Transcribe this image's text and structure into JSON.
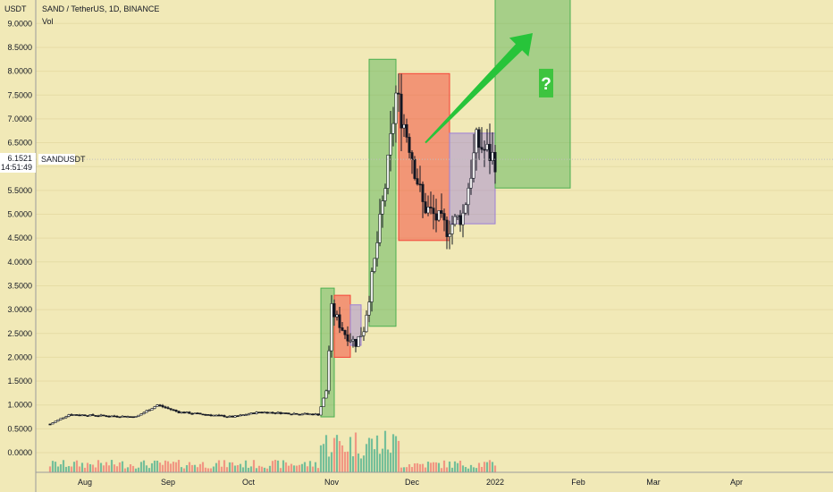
{
  "header": {
    "currency": "USDT",
    "title": "SAND / TetherUS, 1D, BINANCE",
    "volume_label": "Vol"
  },
  "price_badge": {
    "symbol": "SANDUSDT",
    "price": "6.1521",
    "countdown": "14:51:49"
  },
  "annotation": {
    "question_mark": "?"
  },
  "colors": {
    "background": "#f1e9b7",
    "up_candle": "#ffffff",
    "down_candle": "#131722",
    "green_box": "#4caf50",
    "red_box": "#f44336",
    "purple_box": "#9c7ed6",
    "arrow": "#27c43a",
    "volume_up": "#4bb08f",
    "volume_down": "#f07b72"
  },
  "chart_data": {
    "type": "candlestick",
    "title": "SAND / TetherUS, 1D, BINANCE",
    "y_axis_ticks": [
      "9.0000",
      "8.5000",
      "8.0000",
      "7.5000",
      "7.0000",
      "6.5000",
      "6.0000",
      "5.5000",
      "5.0000",
      "4.5000",
      "4.0000",
      "3.5000",
      "3.0000",
      "2.5000",
      "2.0000",
      "1.5000",
      "1.0000",
      "0.5000",
      "0.0000"
    ],
    "x_axis_ticks": [
      "Aug",
      "Sep",
      "Oct",
      "Nov",
      "Dec",
      "2022",
      "Feb",
      "Mar",
      "Apr"
    ],
    "ylim": [
      -0.4,
      9.6
    ],
    "last_price": 6.1521,
    "price_path": [
      {
        "date": "2021-07-19",
        "price": 0.6
      },
      {
        "date": "2021-07-26",
        "price": 0.8
      },
      {
        "date": "2021-08-20",
        "price": 0.75
      },
      {
        "date": "2021-08-28",
        "price": 1.0
      },
      {
        "date": "2021-09-05",
        "price": 0.85
      },
      {
        "date": "2021-09-25",
        "price": 0.75
      },
      {
        "date": "2021-10-05",
        "price": 0.85
      },
      {
        "date": "2021-10-27",
        "price": 0.8
      },
      {
        "date": "2021-10-30",
        "price": 1.3
      },
      {
        "date": "2021-11-01",
        "price": 3.0
      },
      {
        "date": "2021-11-06",
        "price": 2.5
      },
      {
        "date": "2021-11-10",
        "price": 2.3
      },
      {
        "date": "2021-11-13",
        "price": 2.6
      },
      {
        "date": "2021-11-17",
        "price": 4.0
      },
      {
        "date": "2021-11-22",
        "price": 6.0
      },
      {
        "date": "2021-11-25",
        "price": 7.5
      },
      {
        "date": "2021-11-30",
        "price": 6.5
      },
      {
        "date": "2021-12-05",
        "price": 5.2
      },
      {
        "date": "2021-12-14",
        "price": 4.7
      },
      {
        "date": "2021-12-20",
        "price": 5.0
      },
      {
        "date": "2021-12-25",
        "price": 6.5
      },
      {
        "date": "2022-01-01",
        "price": 6.15
      }
    ],
    "boxes": [
      {
        "color": "green",
        "from": "2021-10-28",
        "to": "2021-11-02",
        "low": 0.75,
        "high": 3.45
      },
      {
        "color": "red",
        "from": "2021-11-02",
        "to": "2021-11-08",
        "low": 2.0,
        "high": 3.3
      },
      {
        "color": "purple",
        "from": "2021-11-08",
        "to": "2021-11-12",
        "low": 2.25,
        "high": 3.1
      },
      {
        "color": "green",
        "from": "2021-11-15",
        "to": "2021-11-25",
        "low": 2.65,
        "high": 8.25
      },
      {
        "color": "red",
        "from": "2021-11-26",
        "to": "2021-12-15",
        "low": 4.45,
        "high": 7.95
      },
      {
        "color": "purple",
        "from": "2021-12-15",
        "to": "2022-01-01",
        "low": 4.8,
        "high": 6.7
      },
      {
        "color": "green",
        "from": "2022-01-01",
        "to": "2022-01-29",
        "low": 5.55,
        "high": 9.6
      }
    ],
    "projection_arrow": {
      "from_date": "2021-12-06",
      "from_price": 6.5,
      "to_date": "2022-01-15",
      "to_price": 8.8
    }
  }
}
